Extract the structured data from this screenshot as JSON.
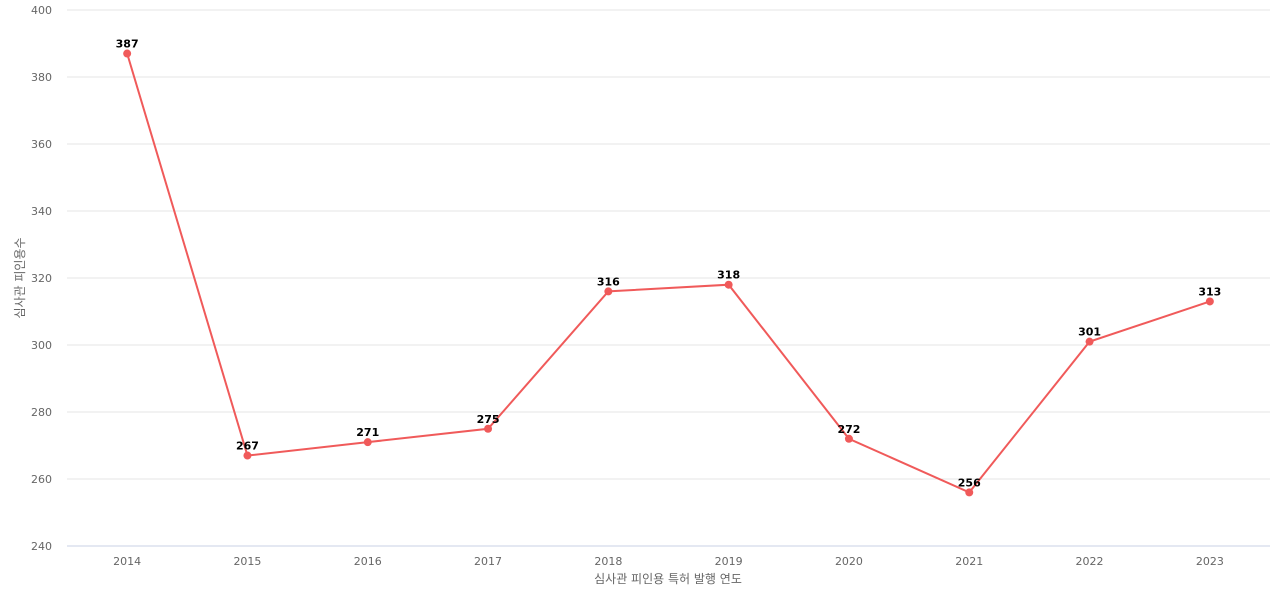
{
  "chart_data": {
    "type": "line",
    "title": "",
    "xlabel": "심사관 피인용 특허 발행 연도",
    "ylabel": "심사관 피인용수",
    "categories": [
      "2014",
      "2015",
      "2016",
      "2017",
      "2018",
      "2019",
      "2020",
      "2021",
      "2022",
      "2023"
    ],
    "series": [
      {
        "values": [
          387,
          267,
          271,
          275,
          316,
          318,
          272,
          256,
          301,
          313
        ],
        "color": "#f05a5a"
      }
    ],
    "ylim": [
      240,
      400
    ],
    "yticks": [
      240,
      260,
      280,
      300,
      320,
      340,
      360,
      380,
      400
    ],
    "grid": true,
    "data_labels": true
  }
}
